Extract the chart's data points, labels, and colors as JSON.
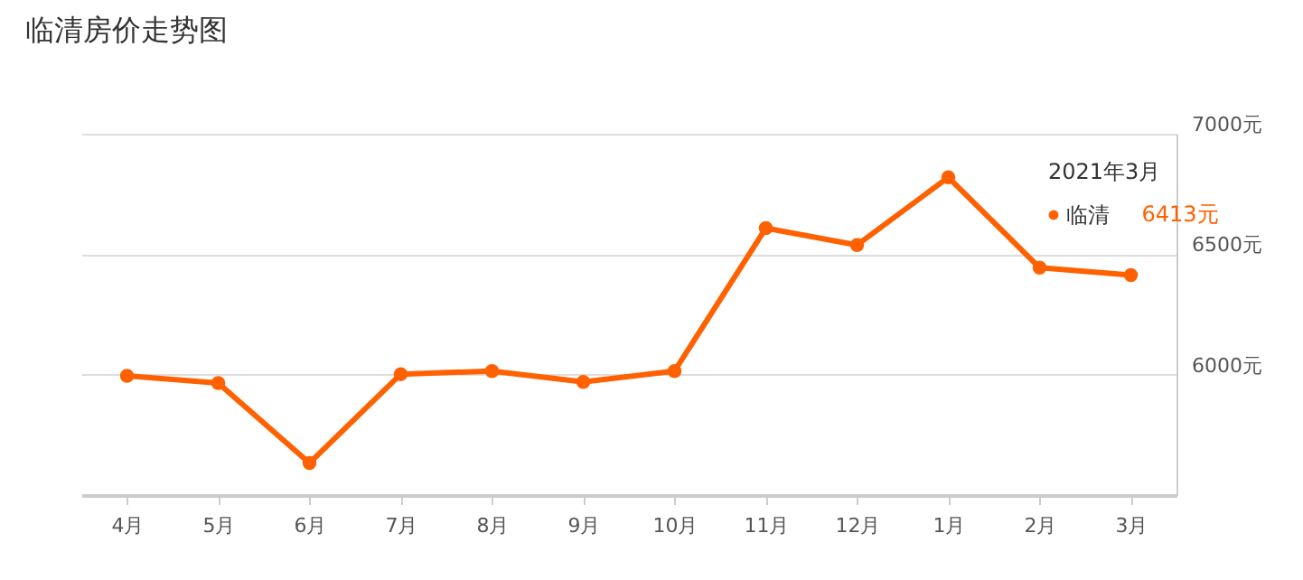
{
  "chart_data": {
    "type": "line",
    "title": "临清房价走势图",
    "categories": [
      "4月",
      "5月",
      "6月",
      "7月",
      "8月",
      "9月",
      "10月",
      "11月",
      "12月",
      "1月",
      "2月",
      "3月"
    ],
    "series": [
      {
        "name": "临清",
        "color": "#ff6000",
        "values": [
          5995,
          5965,
          5633,
          6002,
          6015,
          5970,
          6015,
          6608,
          6538,
          6819,
          6444,
          6413
        ],
        "value_labels": [
          null,
          null,
          null,
          null,
          null,
          null,
          null,
          null,
          null,
          null,
          null,
          "6413元"
        ]
      }
    ],
    "ylim": [
      5500,
      7000
    ],
    "yticks": [
      {
        "value": 6000,
        "label": "6000元"
      },
      {
        "value": 6500,
        "label": "6500元"
      },
      {
        "value": 7000,
        "label": "7000元"
      }
    ],
    "annotations": [
      "2021年3月"
    ],
    "grid": "y",
    "legend": "top right",
    "marker": "circle",
    "line_style": "solid"
  }
}
